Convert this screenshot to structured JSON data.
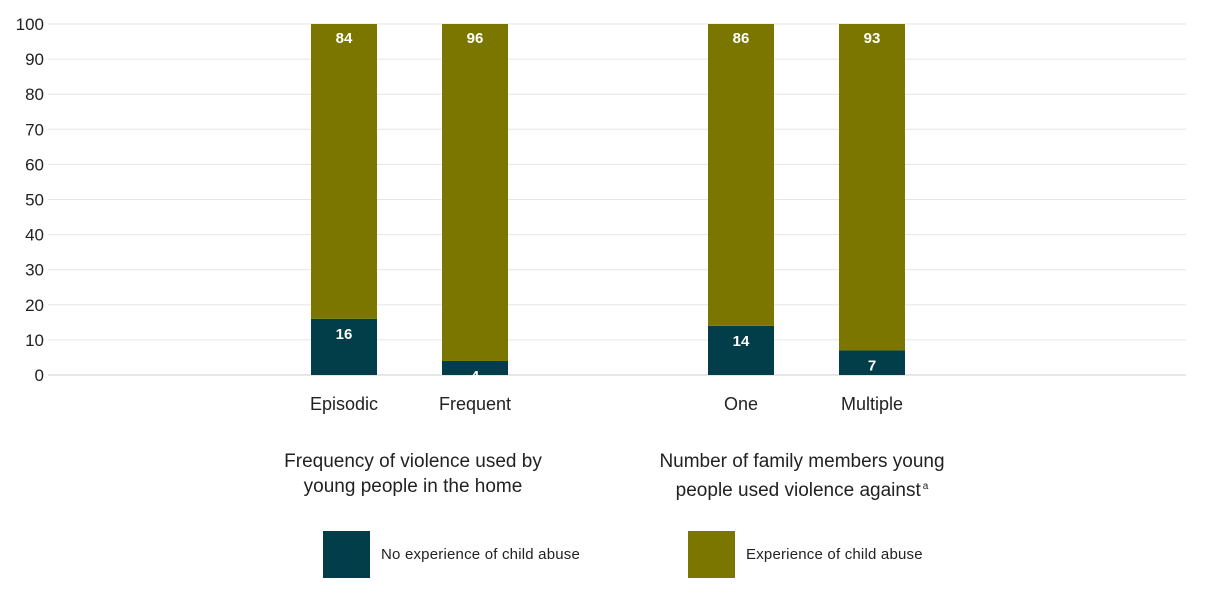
{
  "chart_data": {
    "type": "bar",
    "stacked": true,
    "title": "",
    "xlabel": "",
    "ylabel": "",
    "ylim": [
      0,
      100
    ],
    "yticks": [
      0,
      10,
      20,
      30,
      40,
      50,
      60,
      70,
      80,
      90,
      100
    ],
    "grid": true,
    "categories": [
      "Episodic",
      "Frequent",
      "One",
      "Multiple"
    ],
    "groups": [
      {
        "label": "Frequency of violence used by young people in the home",
        "footnote": "",
        "categories": [
          "Episodic",
          "Frequent"
        ]
      },
      {
        "label": "Number of family members young people used violence against",
        "footnote": "a",
        "categories": [
          "One",
          "Multiple"
        ]
      }
    ],
    "series": [
      {
        "name": "No experience of child abuse",
        "color": "#023e4a",
        "values": [
          16,
          4,
          14,
          7
        ]
      },
      {
        "name": "Experience of child abuse",
        "color": "#7a7600",
        "values": [
          84,
          96,
          86,
          93
        ]
      }
    ],
    "legend_position": "bottom"
  }
}
